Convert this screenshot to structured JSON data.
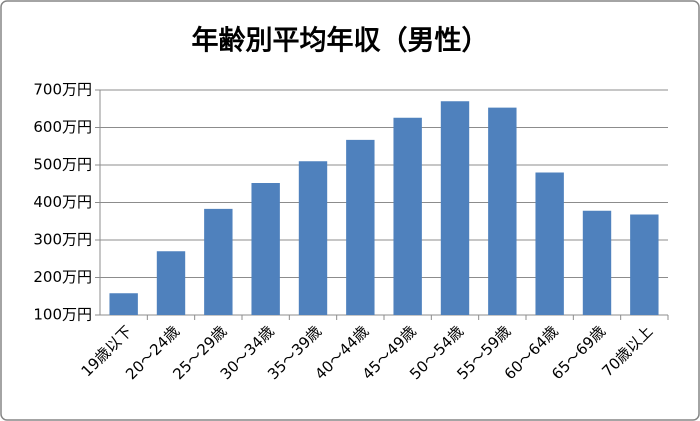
{
  "chart_data": {
    "type": "bar",
    "title": "年齢別平均年収（男性）",
    "categories": [
      "19歳以下",
      "20～24歳",
      "25～29歳",
      "30～34歳",
      "35～39歳",
      "40～44歳",
      "45～49歳",
      "50～54歳",
      "55～59歳",
      "60～64歳",
      "65～69歳",
      "70歳以上"
    ],
    "values": [
      158,
      270,
      383,
      452,
      510,
      567,
      626,
      670,
      653,
      480,
      378,
      368
    ],
    "color": "#4f81bd",
    "ylim": [
      100,
      700
    ],
    "yticks": [
      {
        "value": 100,
        "label": "100万円"
      },
      {
        "value": 200,
        "label": "200万円"
      },
      {
        "value": 300,
        "label": "300万円"
      },
      {
        "value": 400,
        "label": "400万円"
      },
      {
        "value": 500,
        "label": "500万円"
      },
      {
        "value": 600,
        "label": "600万円"
      },
      {
        "value": 700,
        "label": "700万円"
      }
    ],
    "grid": true
  }
}
